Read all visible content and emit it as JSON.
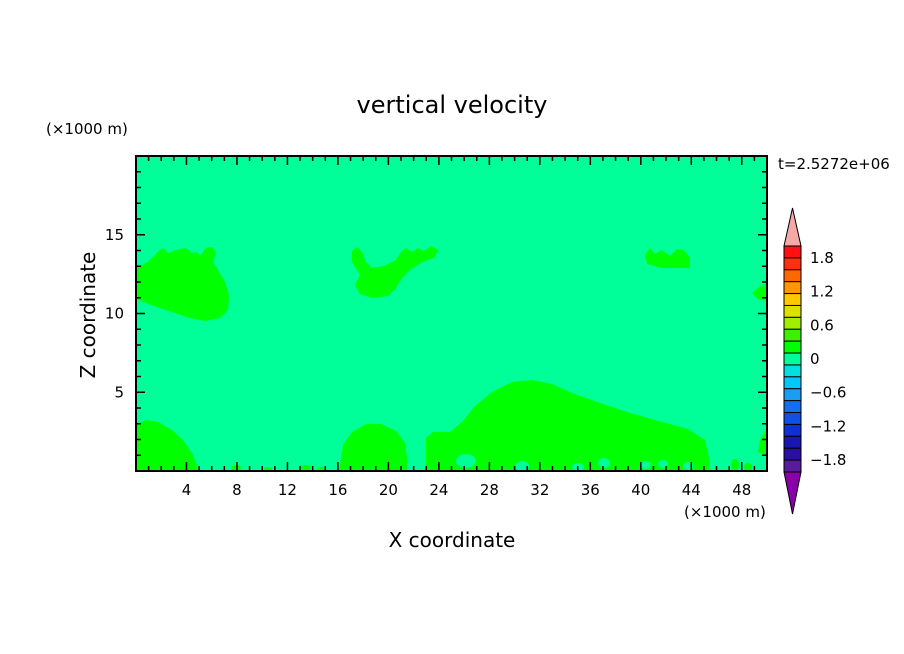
{
  "chart_data": {
    "type": "heatmap",
    "title": "vertical velocity",
    "xlabel": "X coordinate",
    "ylabel": "Z coordinate",
    "x_unit": "(×1000 m)",
    "y_unit": "(×1000 m)",
    "time_label": "t=2.5272e+06",
    "xlim": [
      0,
      50
    ],
    "ylim": [
      0,
      20
    ],
    "x_ticks": [
      4,
      8,
      12,
      16,
      20,
      24,
      28,
      32,
      36,
      40,
      44,
      48
    ],
    "y_ticks": [
      5,
      10,
      15
    ],
    "colorbar": {
      "levels": [
        -2.0,
        -1.8,
        -1.6,
        -1.4,
        -1.2,
        -1.0,
        -0.8,
        -0.6,
        -0.4,
        -0.2,
        0,
        0.2,
        0.4,
        0.6,
        0.8,
        1.0,
        1.2,
        1.4,
        1.6,
        1.8,
        2.0
      ],
      "labels": [
        "1.8",
        "1.2",
        "0.6",
        "0",
        "−0.6",
        "−1.2",
        "−1.8"
      ],
      "label_values": [
        1.8,
        1.2,
        0.6,
        0,
        -0.6,
        -1.2,
        -1.8
      ],
      "colors_low_to_high": [
        "#8800aa",
        "#5a1aa0",
        "#2a10a0",
        "#1818b0",
        "#1030d0",
        "#1050e8",
        "#1070f0",
        "#1a9ef0",
        "#00c8ff",
        "#00e0e0",
        "#00ff99",
        "#00ff00",
        "#40f000",
        "#a0ee00",
        "#e0e000",
        "#ffc800",
        "#ff9800",
        "#ff6800",
        "#ff3010",
        "#ff1010",
        "#f4a8a8"
      ]
    },
    "background_color": "#00ff99",
    "updraft_color": "#00ff00"
  }
}
